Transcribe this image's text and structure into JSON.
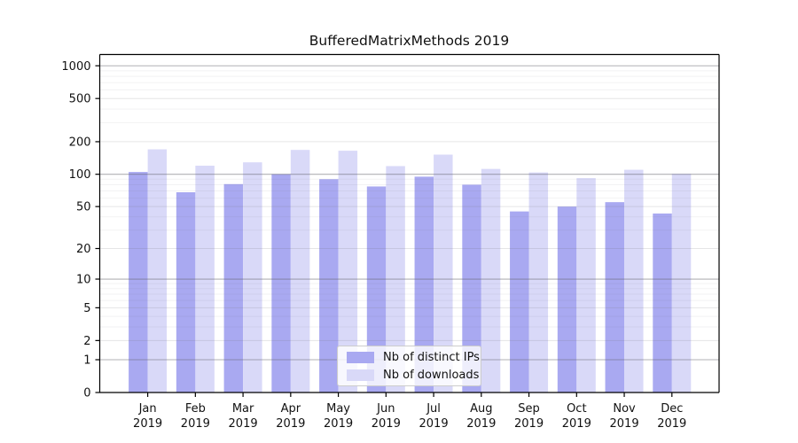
{
  "title": "BufferedMatrixMethods 2019",
  "chart_data": {
    "type": "bar",
    "title": "BufferedMatrixMethods 2019",
    "categories": [
      "Jan",
      "Feb",
      "Mar",
      "Apr",
      "May",
      "Jun",
      "Jul",
      "Aug",
      "Sep",
      "Oct",
      "Nov",
      "Dec"
    ],
    "x_tick_second_line": "2019",
    "series": [
      {
        "name": "Nb of distinct IPs",
        "color": "#a9a9f1",
        "values": [
          105,
          68,
          81,
          100,
          90,
          77,
          95,
          80,
          45,
          50,
          55,
          43
        ]
      },
      {
        "name": "Nb of downloads",
        "color": "#d9d9f8",
        "values": [
          170,
          120,
          129,
          168,
          165,
          119,
          152,
          112,
          104,
          92,
          110,
          101
        ]
      }
    ],
    "y_ticks": [
      0,
      1,
      2,
      5,
      10,
      20,
      50,
      100,
      200,
      500,
      1000
    ],
    "y_scale": "log10(value+1)",
    "ylim": [
      0,
      1270
    ],
    "xlabel": "",
    "ylabel": "",
    "grid": "on",
    "legend_position": "lower center",
    "axis_color": "#000000",
    "text_color": "#111111"
  }
}
